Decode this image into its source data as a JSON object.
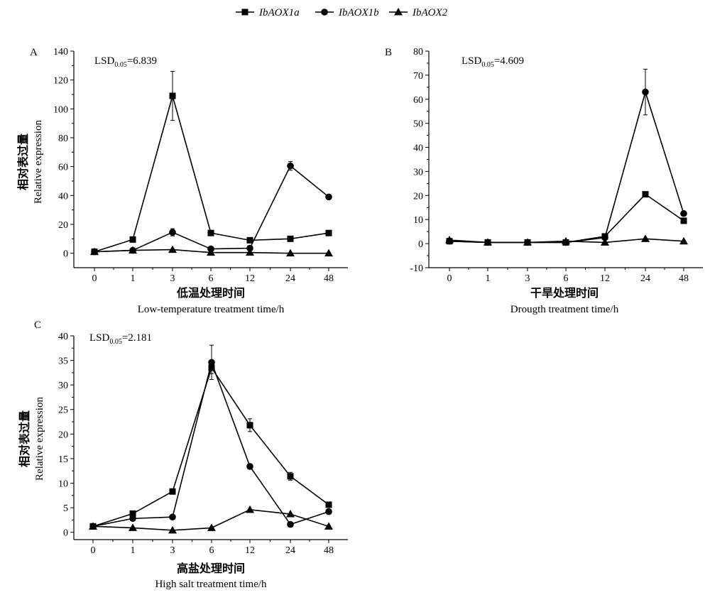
{
  "legend": [
    {
      "name": "IbAOX1a",
      "marker": "square"
    },
    {
      "name": "IbAOX1b",
      "marker": "circle"
    },
    {
      "name": "IbAOX2",
      "marker": "triangle"
    }
  ],
  "chart_data": [
    {
      "type": "line",
      "panel": "A",
      "lsd": "LSD0.05=6.839",
      "lsd_main": "LSD",
      "lsd_sub": "0.05",
      "lsd_value": "=6.839",
      "xlabel_cn": "低温处理时间",
      "xlabel_en": "Low-temperature treatment time/h",
      "ylabel_cn": "相对表过量",
      "ylabel_en": "Relative expression",
      "categories": [
        "0",
        "1",
        "3",
        "6",
        "12",
        "24",
        "48"
      ],
      "ylim": [
        -10,
        140
      ],
      "yticks": [
        0,
        20,
        40,
        60,
        80,
        100,
        120,
        140
      ],
      "series": [
        {
          "name": "IbAOX1a",
          "values": [
            1,
            9.5,
            109,
            14,
            9,
            10,
            14
          ],
          "errors": [
            0,
            0,
            17,
            0,
            0,
            0,
            0
          ]
        },
        {
          "name": "IbAOX1b",
          "values": [
            1,
            2,
            14.5,
            3,
            3.5,
            60.5,
            39
          ],
          "errors": [
            0,
            0,
            2.5,
            0,
            0,
            3,
            0
          ]
        },
        {
          "name": "IbAOX2",
          "values": [
            1,
            2,
            2.5,
            0.5,
            0.5,
            0,
            0
          ],
          "errors": [
            0,
            0,
            0,
            0,
            0,
            0,
            0
          ]
        }
      ]
    },
    {
      "type": "line",
      "panel": "B",
      "lsd": "LSD0.05=4.609",
      "lsd_main": "LSD",
      "lsd_sub": "0.05",
      "lsd_value": "=4.609",
      "xlabel_cn": "干旱处理时间",
      "xlabel_en": "Drougth treatment time/h",
      "ylabel_cn": "",
      "ylabel_en": "",
      "categories": [
        "0",
        "1",
        "3",
        "6",
        "12",
        "24",
        "48"
      ],
      "ylim": [
        -10,
        80
      ],
      "yticks": [
        -10,
        0,
        10,
        20,
        30,
        40,
        50,
        60,
        70,
        80
      ],
      "series": [
        {
          "name": "IbAOX1a",
          "values": [
            1,
            0.5,
            0.5,
            0.5,
            3,
            20.5,
            9.5
          ],
          "errors": [
            0,
            0,
            0,
            0,
            0,
            1,
            0
          ]
        },
        {
          "name": "IbAOX1b",
          "values": [
            1,
            0.5,
            0.5,
            0.5,
            2.5,
            63,
            12.5
          ],
          "errors": [
            0,
            0,
            0,
            0,
            0,
            9.5,
            0
          ]
        },
        {
          "name": "IbAOX2",
          "values": [
            1.5,
            0.5,
            0.5,
            1,
            0.5,
            2,
            1
          ],
          "errors": [
            0,
            0,
            0,
            0,
            0,
            0,
            0
          ]
        }
      ]
    },
    {
      "type": "line",
      "panel": "C",
      "lsd": "LSD0.05=2.181",
      "lsd_main": "LSD",
      "lsd_sub": "0.05",
      "lsd_value": "=2.181",
      "xlabel_cn": "高盐处理时间",
      "xlabel_en": "High salt treatment time/h",
      "ylabel_cn": "相对表过量",
      "ylabel_en": "Relative expression",
      "categories": [
        "0",
        "1",
        "3",
        "6",
        "12",
        "24",
        "48"
      ],
      "ylim": [
        -1.5,
        40
      ],
      "yticks": [
        0,
        5,
        10,
        15,
        20,
        25,
        30,
        35,
        40
      ],
      "series": [
        {
          "name": "IbAOX1a",
          "values": [
            1.2,
            3.8,
            8.3,
            33.5,
            21.8,
            11.4,
            5.6
          ],
          "errors": [
            0,
            0,
            0,
            1.2,
            1.3,
            0.8,
            0
          ]
        },
        {
          "name": "IbAOX1b",
          "values": [
            1.2,
            2.8,
            3.1,
            34.6,
            13.4,
            1.6,
            4.2
          ],
          "errors": [
            0,
            0,
            0,
            3.5,
            0,
            0,
            0.5
          ]
        },
        {
          "name": "IbAOX2",
          "values": [
            1.2,
            0.9,
            0.4,
            0.9,
            4.6,
            3.7,
            1.2
          ],
          "errors": [
            0,
            0,
            0,
            0,
            0,
            0,
            0
          ]
        }
      ]
    }
  ]
}
